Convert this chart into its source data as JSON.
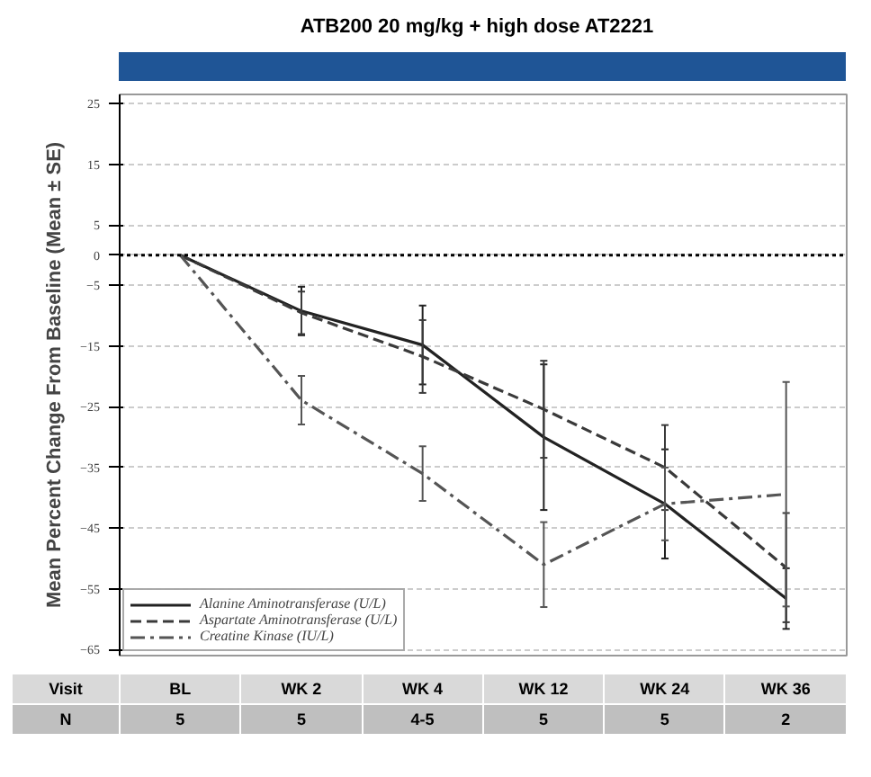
{
  "chart_data": {
    "type": "line",
    "title": "ATB200 20 mg/kg +  high dose AT2221",
    "ylabel": "Mean Percent Change From Baseline (Mean ± SE)",
    "categories": [
      "BL",
      "WK 2",
      "WK 4",
      "WK 12",
      "WK 24",
      "WK 36"
    ],
    "series": [
      {
        "name": "Alanine Aminotransferase (U/L)",
        "color": "#222222",
        "line_style": "solid",
        "values": [
          0,
          -9.2,
          -14.8,
          -30,
          -41,
          -56.6
        ],
        "errors": [
          null,
          4,
          6.5,
          12,
          9,
          5
        ]
      },
      {
        "name": "Aspartate Aminotransferase (U/L)",
        "color": "#3a3a3a",
        "line_style": "dashed",
        "values": [
          0,
          -9.5,
          -16.7,
          -25.4,
          -35,
          -51.5
        ],
        "errors": [
          null,
          3.5,
          6,
          8,
          7,
          9
        ]
      },
      {
        "name": "Creatine Kinase (IU/L)",
        "color": "#555555",
        "line_style": "dashdot",
        "values": [
          0,
          -23.9,
          -36,
          -51,
          -41,
          -39.4
        ],
        "errors": [
          null,
          4,
          4.5,
          7,
          6,
          18.5
        ]
      }
    ],
    "ylim": [
      -66,
      26.5
    ],
    "yticks": [
      25,
      15,
      5,
      0,
      -5,
      -15,
      -25,
      -35,
      -45,
      -55,
      -65
    ],
    "tick_labels": "y",
    "grid": "y",
    "legend": "bottom left",
    "ref_lines": [
      {
        "axis": "y",
        "value": 0,
        "color": "#000000",
        "line_style": "dotted"
      }
    ],
    "annotations": [
      "Visit",
      "N",
      "5",
      "5",
      "4-5",
      "5",
      "5",
      "2"
    ]
  }
}
